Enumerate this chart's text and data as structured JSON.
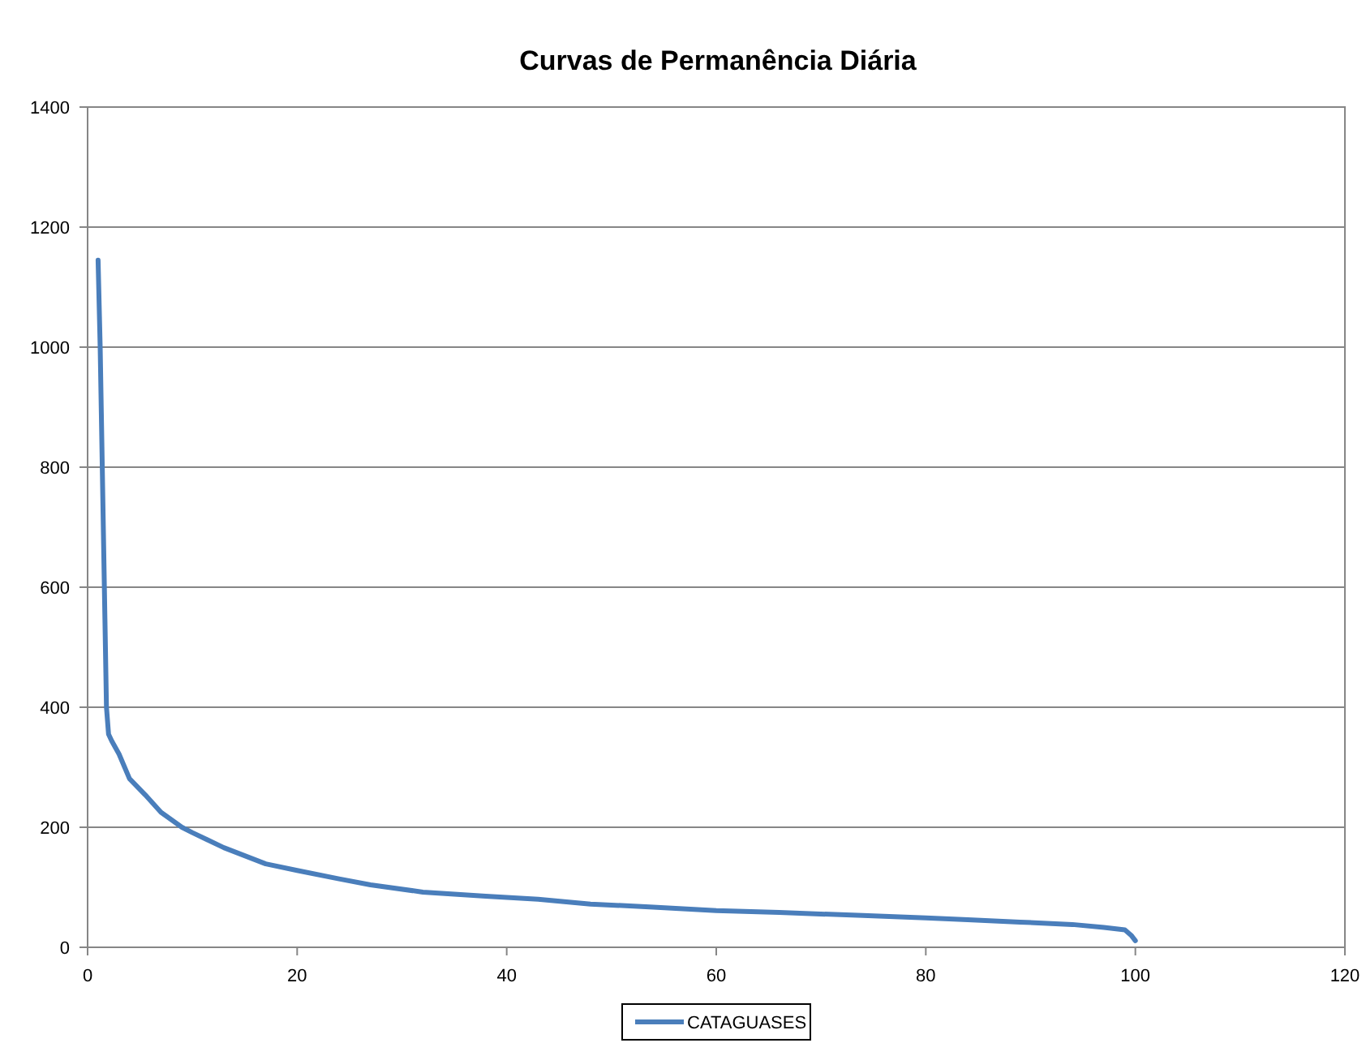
{
  "chart_data": {
    "type": "line",
    "title": "Curvas de Permanência Diária",
    "series": [
      {
        "name": "CATAGUASES",
        "color": "#4a7ebb",
        "x": [
          1,
          1.2,
          1.4,
          1.6,
          1.8,
          2,
          2.3,
          3,
          4,
          5.5,
          7,
          9,
          10,
          13,
          17,
          20,
          24,
          27,
          32,
          38,
          43,
          48,
          54,
          60,
          66,
          74,
          80,
          84,
          89,
          94,
          97,
          99,
          99.6,
          100
        ],
        "values": [
          1145,
          1000,
          800,
          600,
          400,
          355,
          344,
          322,
          281,
          254,
          225,
          200,
          191,
          166,
          139,
          128,
          114,
          104,
          92,
          85,
          80,
          72,
          67,
          61,
          58,
          53,
          49,
          46,
          42,
          38,
          33,
          29,
          20,
          11
        ]
      }
    ],
    "xlim": [
      0,
      120
    ],
    "xticks": [
      0,
      20,
      40,
      60,
      80,
      100,
      120
    ],
    "ylim": [
      0,
      1400
    ],
    "yticks": [
      0,
      200,
      400,
      600,
      800,
      1000,
      1200,
      1400
    ],
    "grid": "y",
    "legend": "bottom",
    "marker": "none",
    "line_style": "solid"
  }
}
